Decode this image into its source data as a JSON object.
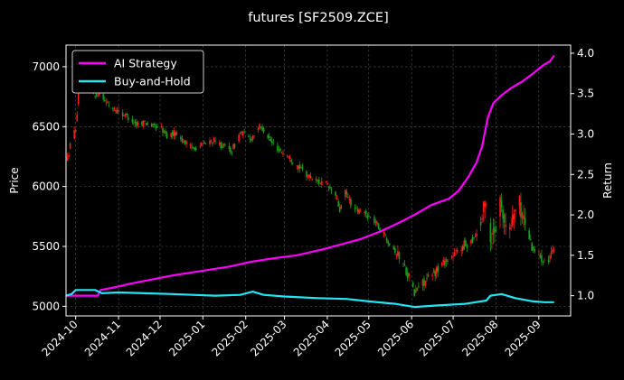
{
  "chart_data": {
    "type": "line",
    "title": "futures [SF2509.ZCE]",
    "ylabel_left": "Price",
    "ylabel_right": "Return",
    "ylim_left": [
      4920,
      7180
    ],
    "ylim_right": [
      0.75,
      4.1
    ],
    "xlim": [
      "2024-09-24",
      "2025-09-24"
    ],
    "y_ticks_left": [
      5000,
      5500,
      6000,
      6500,
      7000
    ],
    "y_ticks_right": [
      1.0,
      1.5,
      2.0,
      2.5,
      3.0,
      3.5,
      4.0
    ],
    "x_ticks": [
      "2024-10",
      "2024-11",
      "2024-12",
      "2025-01",
      "2025-02",
      "2025-03",
      "2025-04",
      "2025-05",
      "2025-06",
      "2025-07",
      "2025-08",
      "2025-09"
    ],
    "grid": true,
    "legend_position": "top-left",
    "colors": {
      "up": "#ff1a1a",
      "down": "#1a9e1a",
      "ai": "#ff00ff",
      "bh": "#22e5f5"
    },
    "candles_path": [
      [
        "2024-09-25",
        6230
      ],
      [
        "2024-09-28",
        6400
      ],
      [
        "2024-10-01",
        6480
      ],
      [
        "2024-10-03",
        6750
      ],
      [
        "2024-10-05",
        6900
      ],
      [
        "2024-10-08",
        7050
      ],
      [
        "2024-10-11",
        6850
      ],
      [
        "2024-10-15",
        6750
      ],
      [
        "2024-10-19",
        6800
      ],
      [
        "2024-10-23",
        6700
      ],
      [
        "2024-10-28",
        6650
      ],
      [
        "2024-11-02",
        6620
      ],
      [
        "2024-11-08",
        6580
      ],
      [
        "2024-11-14",
        6520
      ],
      [
        "2024-11-20",
        6540
      ],
      [
        "2024-11-26",
        6500
      ],
      [
        "2024-12-01",
        6500
      ],
      [
        "2024-12-06",
        6420
      ],
      [
        "2024-12-12",
        6450
      ],
      [
        "2024-12-18",
        6380
      ],
      [
        "2024-12-24",
        6320
      ],
      [
        "2025-01-01",
        6350
      ],
      [
        "2025-01-08",
        6380
      ],
      [
        "2025-01-15",
        6340
      ],
      [
        "2025-01-22",
        6300
      ],
      [
        "2025-01-28",
        6450
      ],
      [
        "2025-02-05",
        6400
      ],
      [
        "2025-02-10",
        6500
      ],
      [
        "2025-02-14",
        6480
      ],
      [
        "2025-02-20",
        6360
      ],
      [
        "2025-02-26",
        6300
      ],
      [
        "2025-03-04",
        6250
      ],
      [
        "2025-03-10",
        6180
      ],
      [
        "2025-03-17",
        6100
      ],
      [
        "2025-03-24",
        6050
      ],
      [
        "2025-03-31",
        6020
      ],
      [
        "2025-04-07",
        5920
      ],
      [
        "2025-04-10",
        5800
      ],
      [
        "2025-04-14",
        5950
      ],
      [
        "2025-04-21",
        5800
      ],
      [
        "2025-04-28",
        5780
      ],
      [
        "2025-05-06",
        5700
      ],
      [
        "2025-05-12",
        5600
      ],
      [
        "2025-05-18",
        5500
      ],
      [
        "2025-05-24",
        5400
      ],
      [
        "2025-05-30",
        5250
      ],
      [
        "2025-06-03",
        5100
      ],
      [
        "2025-06-07",
        5180
      ],
      [
        "2025-06-13",
        5230
      ],
      [
        "2025-06-19",
        5300
      ],
      [
        "2025-06-25",
        5380
      ],
      [
        "2025-07-01",
        5420
      ],
      [
        "2025-07-08",
        5500
      ],
      [
        "2025-07-14",
        5550
      ],
      [
        "2025-07-20",
        5650
      ],
      [
        "2025-07-25",
        5900
      ],
      [
        "2025-07-28",
        5550
      ],
      [
        "2025-08-01",
        5700
      ],
      [
        "2025-08-05",
        5900
      ],
      [
        "2025-08-09",
        5550
      ],
      [
        "2025-08-13",
        5750
      ],
      [
        "2025-08-17",
        5880
      ],
      [
        "2025-08-22",
        5700
      ],
      [
        "2025-08-27",
        5500
      ],
      [
        "2025-09-01",
        5430
      ],
      [
        "2025-09-06",
        5380
      ],
      [
        "2025-09-11",
        5450
      ],
      [
        "2025-09-14",
        5420
      ]
    ],
    "series": [
      {
        "name": "AI Strategy",
        "points": [
          [
            "2024-09-24",
            1.0
          ],
          [
            "2024-10-17",
            1.0
          ],
          [
            "2024-10-19",
            1.07
          ],
          [
            "2024-10-28",
            1.1
          ],
          [
            "2024-11-10",
            1.15
          ],
          [
            "2024-11-25",
            1.2
          ],
          [
            "2024-12-10",
            1.25
          ],
          [
            "2025-01-01",
            1.31
          ],
          [
            "2025-01-20",
            1.36
          ],
          [
            "2025-02-05",
            1.42
          ],
          [
            "2025-02-20",
            1.46
          ],
          [
            "2025-03-10",
            1.5
          ],
          [
            "2025-03-28",
            1.57
          ],
          [
            "2025-04-10",
            1.63
          ],
          [
            "2025-04-25",
            1.7
          ],
          [
            "2025-05-10",
            1.8
          ],
          [
            "2025-05-25",
            1.92
          ],
          [
            "2025-06-05",
            2.02
          ],
          [
            "2025-06-15",
            2.12
          ],
          [
            "2025-06-28",
            2.2
          ],
          [
            "2025-07-05",
            2.3
          ],
          [
            "2025-07-12",
            2.47
          ],
          [
            "2025-07-18",
            2.65
          ],
          [
            "2025-07-22",
            2.85
          ],
          [
            "2025-07-26",
            3.2
          ],
          [
            "2025-07-30",
            3.38
          ],
          [
            "2025-08-05",
            3.48
          ],
          [
            "2025-08-12",
            3.57
          ],
          [
            "2025-08-20",
            3.65
          ],
          [
            "2025-08-28",
            3.75
          ],
          [
            "2025-09-04",
            3.85
          ],
          [
            "2025-09-09",
            3.9
          ],
          [
            "2025-09-12",
            3.97
          ]
        ]
      },
      {
        "name": "Buy-and-Hold",
        "points": [
          [
            "2024-09-24",
            1.0
          ],
          [
            "2024-09-28",
            1.02
          ],
          [
            "2024-10-01",
            1.07
          ],
          [
            "2024-10-15",
            1.07
          ],
          [
            "2024-10-20",
            1.03
          ],
          [
            "2024-11-01",
            1.04
          ],
          [
            "2024-11-20",
            1.03
          ],
          [
            "2024-12-10",
            1.02
          ],
          [
            "2025-01-10",
            1.0
          ],
          [
            "2025-01-28",
            1.01
          ],
          [
            "2025-02-06",
            1.05
          ],
          [
            "2025-02-14",
            1.01
          ],
          [
            "2025-03-01",
            0.99
          ],
          [
            "2025-03-25",
            0.97
          ],
          [
            "2025-04-15",
            0.96
          ],
          [
            "2025-05-01",
            0.93
          ],
          [
            "2025-05-20",
            0.9
          ],
          [
            "2025-06-03",
            0.86
          ],
          [
            "2025-06-20",
            0.88
          ],
          [
            "2025-07-10",
            0.9
          ],
          [
            "2025-07-25",
            0.94
          ],
          [
            "2025-07-28",
            1.0
          ],
          [
            "2025-08-05",
            1.02
          ],
          [
            "2025-08-15",
            0.97
          ],
          [
            "2025-08-28",
            0.93
          ],
          [
            "2025-09-05",
            0.92
          ],
          [
            "2025-09-12",
            0.92
          ]
        ]
      }
    ]
  }
}
